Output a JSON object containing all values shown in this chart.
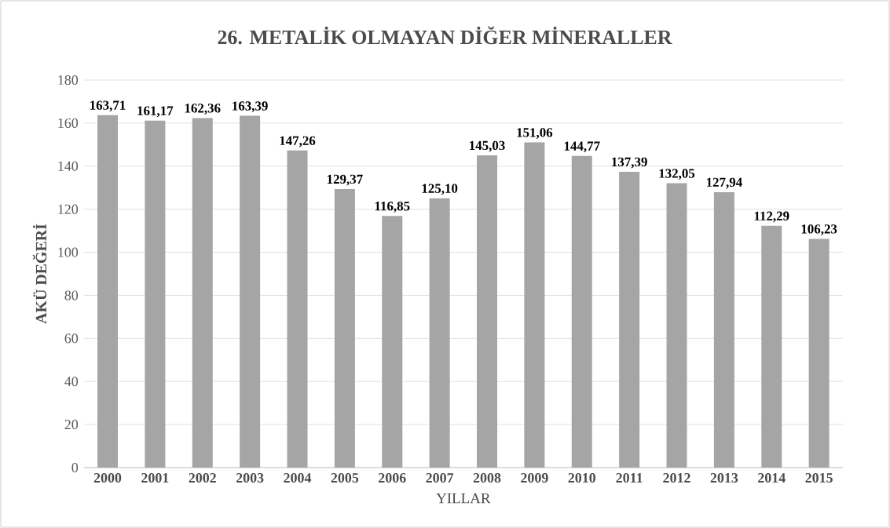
{
  "chart_data": {
    "type": "bar",
    "title": "26. METALİK OLMAYAN DİĞER MİNERALLER",
    "xlabel": "YILLAR",
    "ylabel": "AKÜ DEĞERİ",
    "categories": [
      "2000",
      "2001",
      "2002",
      "2003",
      "2004",
      "2005",
      "2006",
      "2007",
      "2008",
      "2009",
      "2010",
      "2011",
      "2012",
      "2013",
      "2014",
      "2015"
    ],
    "values": [
      163.71,
      161.17,
      162.36,
      163.39,
      147.26,
      129.37,
      116.85,
      125.1,
      145.03,
      151.06,
      144.77,
      137.39,
      132.05,
      127.94,
      112.29,
      106.23
    ],
    "value_labels": [
      "163,71",
      "161,17",
      "162,36",
      "163,39",
      "147,26",
      "129,37",
      "116,85",
      "125,10",
      "145,03",
      "151,06",
      "144,77",
      "137,39",
      "132,05",
      "127,94",
      "112,29",
      "106,23"
    ],
    "color": "#a5a5a5",
    "ylim": [
      0,
      180
    ],
    "yticks": [
      0,
      20,
      40,
      60,
      80,
      100,
      120,
      140,
      160,
      180
    ],
    "grid": "y"
  }
}
